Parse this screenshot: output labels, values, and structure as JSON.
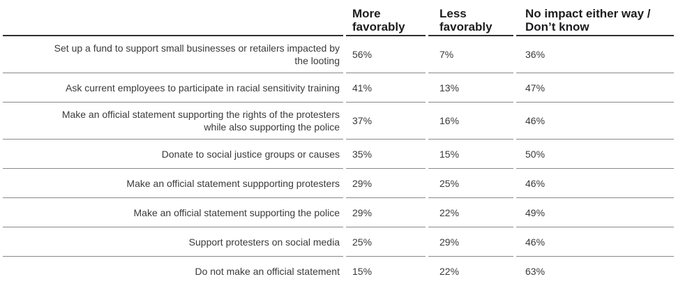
{
  "header": {
    "col_more": "More\nfavorably",
    "col_less": "Less\nfavorably",
    "col_noimpact": "No impact either way /\nDon’t know"
  },
  "rows": [
    {
      "statement": "Set up a fund to support small businesses or retailers impacted by\nthe looting",
      "more": "56%",
      "less": "7%",
      "no_impact": "36%"
    },
    {
      "statement": "Ask current employees to participate in racial sensitivity training",
      "more": "41%",
      "less": "13%",
      "no_impact": "47%"
    },
    {
      "statement": "Make an official statement supporting the rights of the protesters\nwhile also supporting the police",
      "more": "37%",
      "less": "16%",
      "no_impact": "46%"
    },
    {
      "statement": "Donate to social justice groups or causes",
      "more": "35%",
      "less": "15%",
      "no_impact": "50%"
    },
    {
      "statement": "Make an official statement suppporting protesters",
      "more": "29%",
      "less": "25%",
      "no_impact": "46%"
    },
    {
      "statement": "Make an official statement supporting the police",
      "more": "29%",
      "less": "22%",
      "no_impact": "49%"
    },
    {
      "statement": "Support protesters on social media",
      "more": "25%",
      "less": "29%",
      "no_impact": "46%"
    },
    {
      "statement": "Do not make an official statement",
      "more": "15%",
      "less": "22%",
      "no_impact": "63%"
    }
  ],
  "colors": {
    "header_text": "#1d1d1f",
    "body_text": "#3a3a3a",
    "header_rule": "#2f2f2f",
    "row_rule": "#888888",
    "background": "#ffffff"
  },
  "chart_data": {
    "type": "table",
    "title": "",
    "unit": "%",
    "categories": [
      "Set up a fund to support small businesses or retailers impacted by the looting",
      "Ask current employees to participate in racial sensitivity training",
      "Make an official statement supporting the rights of the protesters while also supporting the police",
      "Donate to social justice groups or causes",
      "Make an official statement suppporting protesters",
      "Make an official statement supporting the police",
      "Support protesters on social media",
      "Do not make an official statement"
    ],
    "series": [
      {
        "name": "More favorably",
        "values": [
          56,
          41,
          37,
          35,
          29,
          29,
          25,
          15
        ]
      },
      {
        "name": "Less favorably",
        "values": [
          7,
          13,
          16,
          15,
          25,
          22,
          29,
          22
        ]
      },
      {
        "name": "No impact either way / Don’t know",
        "values": [
          36,
          47,
          46,
          50,
          46,
          49,
          46,
          63
        ]
      }
    ],
    "layout_hints": {
      "statement_column_alignment": "right",
      "value_alignment": "left",
      "header_rule": "2px dark",
      "row_rules": "thin gray with gaps at column boundaries"
    }
  }
}
